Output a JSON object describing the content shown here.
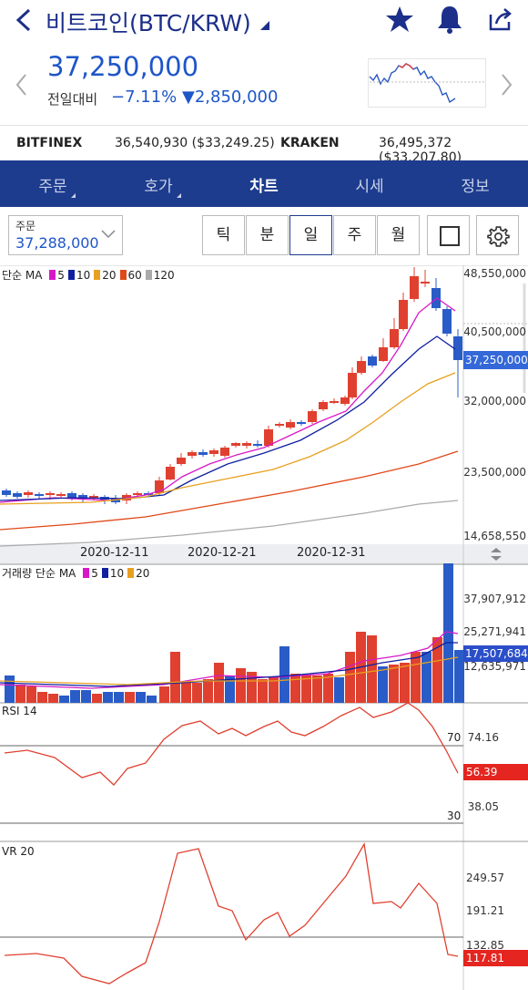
{
  "header": {
    "title": "비트코인(BTC/KRW)",
    "price": "37,250,000",
    "change_label": "전일대비",
    "change_pct": "−7.11%",
    "change_amt": "▼2,850,000"
  },
  "exchanges": [
    {
      "name": "BITFINEX",
      "value": "36,540,930 ($33,249.25)"
    },
    {
      "name": "KRAKEN",
      "value": "36,495,372 ($33,207.80)"
    }
  ],
  "tabs": [
    "주문",
    "호가",
    "차트",
    "시세",
    "정보"
  ],
  "active_tab": "차트",
  "order_box": {
    "label": "주문",
    "value": "37,288,000"
  },
  "periods": [
    "틱",
    "분",
    "일",
    "주",
    "월"
  ],
  "active_period": "일",
  "price_chart": {
    "ma_label": "단순 MA",
    "ma_items": [
      {
        "n": "5",
        "color": "#d818c8"
      },
      {
        "n": "10",
        "color": "#1020a0"
      },
      {
        "n": "20",
        "color": "#e8a020"
      },
      {
        "n": "60",
        "color": "#e04818"
      },
      {
        "n": "120",
        "color": "#aaaaaa"
      }
    ],
    "y_labels": [
      "48,550,000",
      "40,500,000",
      "32,000,000",
      "23,500,000",
      "14,658,550"
    ],
    "current_label": "37,250,000",
    "x_labels": [
      "2020-12-11",
      "2020-12-21",
      "2020-12-31"
    ]
  },
  "volume_chart": {
    "ma_label": "거래량 단순 MA",
    "ma_items": [
      {
        "n": "5",
        "color": "#d818c8"
      },
      {
        "n": "10",
        "color": "#1020a0"
      },
      {
        "n": "20",
        "color": "#e8a020"
      }
    ],
    "y_labels": [
      "37,907,912",
      "25,271,941",
      "12,635,971"
    ],
    "current_label": "17,507,684"
  },
  "rsi_chart": {
    "label": "RSI 14",
    "line70": "70",
    "line30": "30",
    "y_labels": [
      "74.16",
      "38.05"
    ],
    "current_label": "56.39"
  },
  "vr_chart": {
    "label": "VR 20",
    "y_labels": [
      "249.57",
      "191.21",
      "132.85"
    ],
    "current_label": "117.81"
  }
}
